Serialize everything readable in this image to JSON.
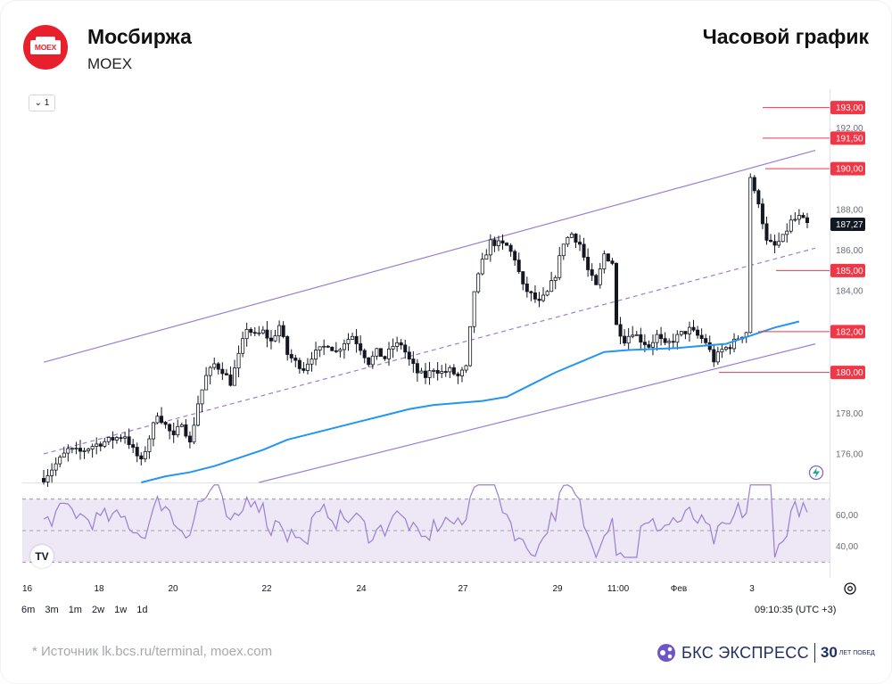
{
  "header": {
    "company": "Мосбиржа",
    "ticker": "MOEX",
    "chart_title": "Часовой график",
    "logo_text": "MOEX",
    "logo_color": "#e8202c"
  },
  "toolbar": {
    "interval_label": "1",
    "ranges": [
      "6m",
      "3m",
      "1m",
      "2w",
      "1w",
      "1d"
    ],
    "timezone": "09:10:35 (UTC +3)"
  },
  "footer": {
    "source": "*  Источник lk.bcs.ru/terminal, moex.com",
    "brand": "БКС ЭКСПРЕСС",
    "brand_30": "30",
    "brand_years": "ЛЕТ ПОБЕД"
  },
  "colors": {
    "candle": "#131722",
    "level_line": "#f23645",
    "level_badge": "#f23645",
    "channel": "#9b7fd0",
    "ma": "#2196f3",
    "rsi": "#9b7fd0",
    "rsi_band": "#ede7f6",
    "last_price_badge": "#131722"
  },
  "chart_data": [
    {
      "type": "candlestick",
      "title": "Часовой график",
      "x_ticks": [
        "16",
        "18",
        "20",
        "22",
        "24",
        "27",
        "29",
        "11:00",
        "Фев",
        "3"
      ],
      "y_ticks": [
        "176,00",
        "178,00",
        "180,00",
        "182,00",
        "184,00",
        "186,00",
        "188,00",
        "190,00",
        "192,00"
      ],
      "ylim": [
        174.6,
        193.9
      ],
      "last_price": "187,27",
      "levels": [
        {
          "label": "193,00",
          "value": 193.0
        },
        {
          "label": "191,50",
          "value": 191.5
        },
        {
          "label": "190,00",
          "value": 190.0
        },
        {
          "label": "185,00",
          "value": 185.0
        },
        {
          "label": "182,00",
          "value": 182.0
        },
        {
          "label": "180,00",
          "value": 180.0
        }
      ],
      "close_path": [
        [
          0,
          174.8
        ],
        [
          3,
          175.5
        ],
        [
          6,
          176.2
        ],
        [
          9,
          176.1
        ],
        [
          12,
          176.4
        ],
        [
          15,
          176.6
        ],
        [
          18,
          176.8
        ],
        [
          20,
          176.9
        ],
        [
          22,
          176.2
        ],
        [
          24,
          175.6
        ],
        [
          26,
          176.8
        ],
        [
          28,
          178.0
        ],
        [
          30,
          177.4
        ],
        [
          32,
          176.8
        ],
        [
          34,
          177.6
        ],
        [
          36,
          176.5
        ],
        [
          38,
          178.5
        ],
        [
          40,
          179.8
        ],
        [
          42,
          180.4
        ],
        [
          44,
          180.1
        ],
        [
          46,
          179.5
        ],
        [
          48,
          180.8
        ],
        [
          50,
          182.2
        ],
        [
          52,
          181.8
        ],
        [
          54,
          182.0
        ],
        [
          56,
          181.5
        ],
        [
          58,
          182.3
        ],
        [
          60,
          180.9
        ],
        [
          62,
          180.5
        ],
        [
          64,
          180.2
        ],
        [
          66,
          180.8
        ],
        [
          68,
          181.1
        ],
        [
          70,
          181.4
        ],
        [
          72,
          181.0
        ],
        [
          74,
          181.5
        ],
        [
          76,
          181.8
        ],
        [
          78,
          181.2
        ],
        [
          80,
          180.5
        ],
        [
          82,
          181.0
        ],
        [
          84,
          180.7
        ],
        [
          86,
          181.3
        ],
        [
          88,
          181.4
        ],
        [
          90,
          180.6
        ],
        [
          92,
          180.0
        ],
        [
          94,
          179.8
        ],
        [
          96,
          180.2
        ],
        [
          98,
          180.0
        ],
        [
          100,
          180.1
        ],
        [
          102,
          179.8
        ],
        [
          104,
          180.2
        ],
        [
          106,
          184.0
        ],
        [
          108,
          185.4
        ],
        [
          110,
          186.4
        ],
        [
          112,
          186.3
        ],
        [
          114,
          186.2
        ],
        [
          116,
          185.6
        ],
        [
          118,
          184.2
        ],
        [
          120,
          183.8
        ],
        [
          122,
          183.4
        ],
        [
          124,
          183.9
        ],
        [
          126,
          184.8
        ],
        [
          128,
          186.4
        ],
        [
          130,
          186.8
        ],
        [
          132,
          186.3
        ],
        [
          134,
          185.0
        ],
        [
          136,
          184.2
        ],
        [
          138,
          185.8
        ],
        [
          140,
          185.4
        ],
        [
          141,
          182.3
        ],
        [
          143,
          181.6
        ],
        [
          145,
          182.0
        ],
        [
          147,
          181.6
        ],
        [
          149,
          181.3
        ],
        [
          151,
          181.8
        ],
        [
          153,
          181.3
        ],
        [
          155,
          181.6
        ],
        [
          157,
          181.9
        ],
        [
          159,
          182.1
        ],
        [
          161,
          181.8
        ],
        [
          163,
          181.5
        ],
        [
          165,
          180.6
        ],
        [
          167,
          181.1
        ],
        [
          169,
          181.3
        ],
        [
          171,
          181.7
        ],
        [
          173,
          182.0
        ],
        [
          174,
          189.6
        ],
        [
          175,
          188.8
        ],
        [
          176,
          188.4
        ],
        [
          178,
          186.4
        ],
        [
          180,
          186.2
        ],
        [
          182,
          186.6
        ],
        [
          184,
          187.4
        ],
        [
          186,
          187.6
        ],
        [
          188,
          187.27
        ]
      ],
      "ma": [
        [
          24,
          174.6
        ],
        [
          30,
          174.9
        ],
        [
          36,
          175.1
        ],
        [
          42,
          175.4
        ],
        [
          48,
          175.8
        ],
        [
          54,
          176.2
        ],
        [
          60,
          176.7
        ],
        [
          66,
          177.0
        ],
        [
          72,
          177.3
        ],
        [
          78,
          177.6
        ],
        [
          84,
          177.9
        ],
        [
          90,
          178.2
        ],
        [
          96,
          178.4
        ],
        [
          102,
          178.5
        ],
        [
          108,
          178.6
        ],
        [
          114,
          178.8
        ],
        [
          120,
          179.4
        ],
        [
          126,
          180.0
        ],
        [
          132,
          180.5
        ],
        [
          138,
          181.0
        ],
        [
          144,
          181.1
        ],
        [
          150,
          181.15
        ],
        [
          156,
          181.2
        ],
        [
          162,
          181.3
        ],
        [
          168,
          181.4
        ],
        [
          174,
          181.8
        ],
        [
          180,
          182.2
        ],
        [
          186,
          182.5
        ]
      ],
      "channel": {
        "upper": [
          [
            0,
            180.5
          ],
          [
            190,
            190.9
          ]
        ],
        "lower": [
          [
            53,
            174.6
          ],
          [
            190,
            181.4
          ]
        ],
        "median": [
          [
            0,
            176.0
          ],
          [
            190,
            186.1
          ]
        ]
      }
    },
    {
      "type": "line",
      "title": "",
      "y_ticks": [
        "40,00",
        "60,00"
      ],
      "ylim": [
        20,
        80
      ],
      "band": [
        30,
        70
      ],
      "midline": 50
    }
  ]
}
